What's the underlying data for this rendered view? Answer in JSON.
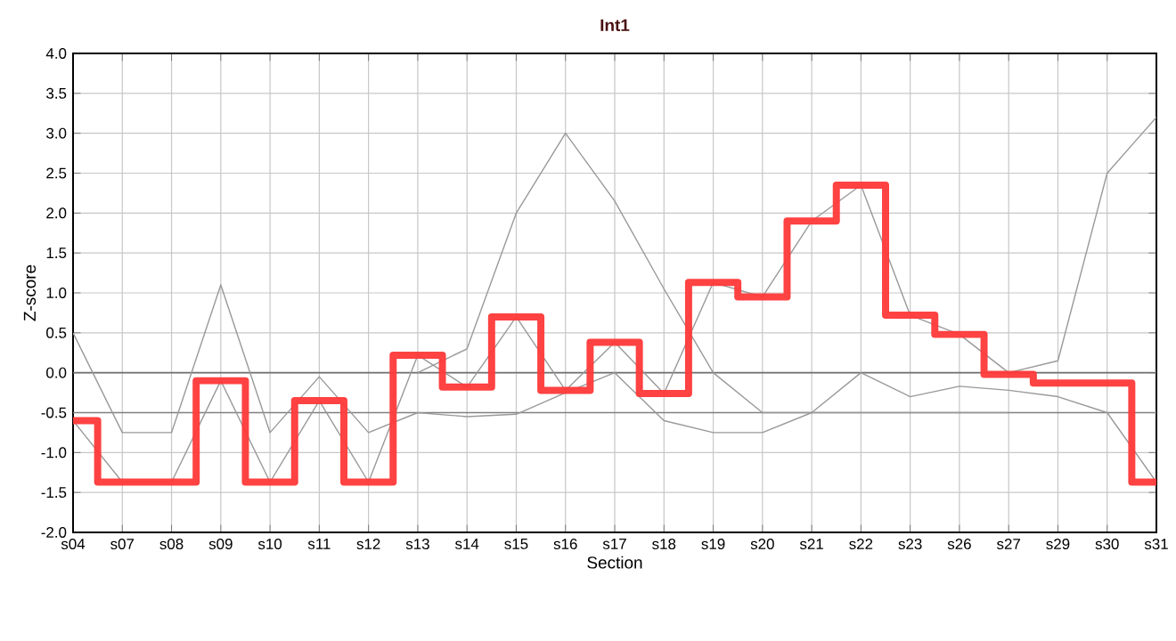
{
  "chart_data": {
    "type": "step",
    "title": "Int1",
    "xlabel": "Section",
    "ylabel": "Z-score",
    "categories": [
      "s04",
      "s07",
      "s08",
      "s09",
      "s10",
      "s11",
      "s12",
      "s13",
      "s14",
      "s15",
      "s16",
      "s17",
      "s18",
      "s19",
      "s20",
      "s21",
      "s22",
      "s23",
      "s26",
      "s27",
      "s29",
      "s30",
      "s31"
    ],
    "series": [
      {
        "type": "line",
        "color": "#999999",
        "values": [
          0.5,
          -0.75,
          -0.75,
          1.1,
          -0.75,
          -0.05,
          -0.75,
          -0.5,
          -0.55,
          -0.52,
          -0.25,
          0.0,
          -0.6,
          -0.75,
          -0.75,
          -0.5,
          0.0,
          -0.3,
          -0.17,
          -0.22,
          -0.3,
          -0.5,
          -1.37
        ]
      },
      {
        "type": "line",
        "color": "#999999",
        "values": [
          -0.6,
          -1.37,
          -1.37,
          -0.1,
          -1.37,
          -0.35,
          -1.37,
          0.22,
          -0.18,
          0.7,
          -0.22,
          0.38,
          -0.26,
          1.13,
          0.95,
          1.9,
          2.35,
          0.72,
          0.48,
          0.0,
          0.15,
          2.5,
          3.2
        ]
      },
      {
        "type": "line",
        "color": "#999999",
        "values": [
          null,
          null,
          null,
          null,
          null,
          null,
          null,
          0.0,
          0.3,
          2.0,
          3.0,
          2.15,
          1.05,
          0.0,
          -0.5,
          -0.5,
          -0.5,
          -0.5,
          -0.5,
          -0.5,
          null,
          null,
          null
        ]
      },
      {
        "color": "#ff3838",
        "values": [
          -0.6,
          -1.37,
          -1.37,
          -0.1,
          -1.37,
          -0.35,
          -1.37,
          0.22,
          -0.18,
          0.7,
          -0.22,
          0.38,
          -0.26,
          1.13,
          0.95,
          1.9,
          2.35,
          0.72,
          0.48,
          -0.02,
          -0.13,
          -0.13,
          -1.37
        ]
      }
    ],
    "ylim": [
      -2.0,
      4.0
    ],
    "yticks": [
      {
        "value": -2.0,
        "label": "-2.0"
      },
      {
        "value": -1.5,
        "label": "-1.5"
      },
      {
        "value": -1.0,
        "label": "-1.0"
      },
      {
        "value": -0.5,
        "label": "-0.5"
      },
      {
        "value": 0.0,
        "label": "0.0"
      },
      {
        "value": 0.5,
        "label": "0.5"
      },
      {
        "value": 1.0,
        "label": "1.0"
      },
      {
        "value": 1.5,
        "label": "1.5"
      },
      {
        "value": 2.0,
        "label": "2.0"
      },
      {
        "value": 2.5,
        "label": "2.5"
      },
      {
        "value": 3.0,
        "label": "3.0"
      },
      {
        "value": 3.5,
        "label": "3.5"
      },
      {
        "value": 4.0,
        "label": "4.0"
      }
    ],
    "ref_lines": [
      {
        "axis": "y",
        "value": 0.0,
        "color": "#707070"
      },
      {
        "axis": "y",
        "value": -0.5,
        "color": "#808080"
      }
    ],
    "grid": true,
    "marker": "none"
  }
}
